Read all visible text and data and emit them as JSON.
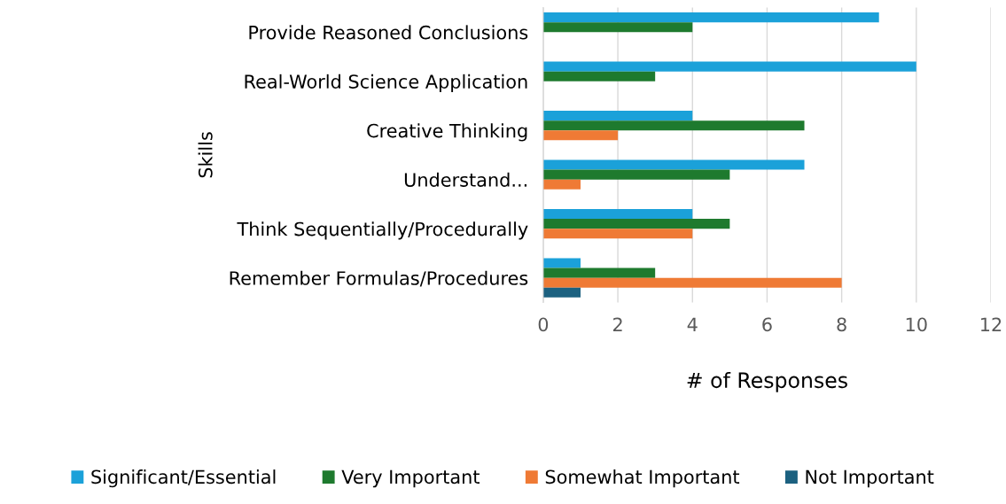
{
  "chart_data": {
    "type": "bar",
    "orientation": "horizontal",
    "xlabel": "# of Responses",
    "ylabel": "Skills",
    "categories": [
      "Provide Reasoned Conclusions",
      "Real-World Science Application",
      "Creative Thinking",
      "Understand...",
      "Think Sequentially/Procedurally",
      "Remember Formulas/Procedures"
    ],
    "series": [
      {
        "name": "Significant/Essential",
        "color": "#1ba1d9",
        "values": [
          9,
          10,
          4,
          7,
          4,
          1
        ]
      },
      {
        "name": "Very Important",
        "color": "#1e7a2e",
        "values": [
          4,
          3,
          7,
          5,
          5,
          3
        ]
      },
      {
        "name": "Somewhat Important",
        "color": "#ef7a35",
        "values": [
          0,
          0,
          2,
          1,
          4,
          8
        ]
      },
      {
        "name": "Not Important",
        "color": "#1c6180",
        "values": [
          0,
          0,
          0,
          0,
          0,
          1
        ]
      }
    ],
    "xlim": [
      0,
      12
    ],
    "xticks": [
      0,
      2,
      4,
      6,
      8,
      10,
      12
    ],
    "grid": "x",
    "legend": "bottom"
  }
}
